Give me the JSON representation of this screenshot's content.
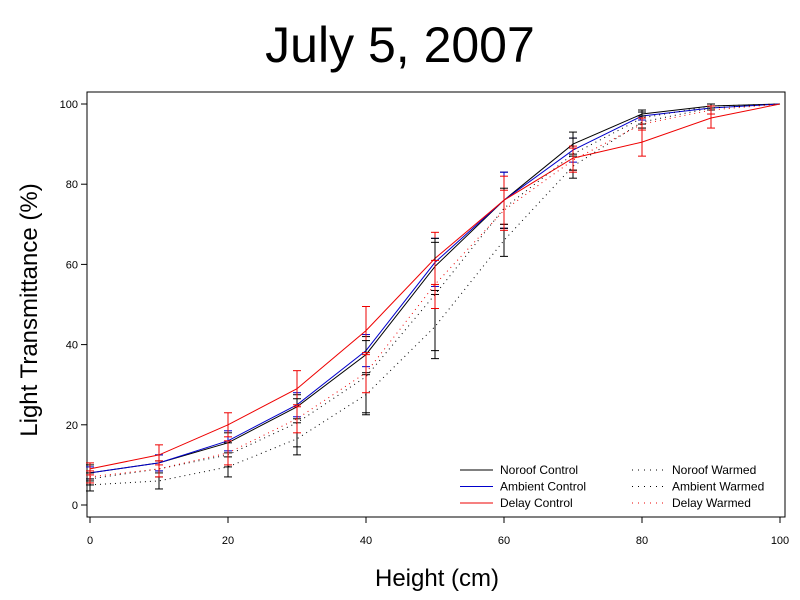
{
  "chart_data": {
    "type": "line",
    "title": "July 5, 2007",
    "xlabel": "Height (cm)",
    "ylabel": "Light Transmittance (%)",
    "xlim": [
      0,
      100
    ],
    "ylim": [
      0,
      100
    ],
    "xticks": [
      0,
      20,
      40,
      60,
      80,
      100
    ],
    "yticks": [
      0,
      20,
      40,
      60,
      80,
      100
    ],
    "x": [
      0,
      10,
      20,
      30,
      40,
      50,
      60,
      70,
      80,
      90,
      100
    ],
    "grid": false,
    "legend_position": "bottom-right",
    "series": [
      {
        "name": "Noroof Control",
        "color": "#000000",
        "style": "solid",
        "values": [
          8,
          10.5,
          15.5,
          24.5,
          37.5,
          59.5,
          76,
          90,
          97.5,
          99.5,
          100
        ],
        "err": [
          2,
          2,
          2.5,
          3,
          4.5,
          6,
          7,
          3,
          1,
          0.5,
          0
        ]
      },
      {
        "name": "Ambient Control",
        "color": "#0000cc",
        "style": "solid",
        "values": [
          8,
          10.5,
          16,
          25,
          38.5,
          60.5,
          76,
          88.5,
          97,
          99,
          100
        ],
        "err": [
          1.5,
          2,
          2.5,
          3,
          4,
          6,
          7,
          3,
          1,
          0.5,
          0
        ]
      },
      {
        "name": "Delay Control",
        "color": "#ee0000",
        "style": "solid",
        "values": [
          9,
          12.5,
          20,
          29,
          43.5,
          61.5,
          76,
          86.5,
          90.5,
          96.5,
          100
        ],
        "err": [
          1.5,
          2.5,
          3,
          4.5,
          6,
          6.5,
          6,
          3,
          3.5,
          2.5,
          0
        ]
      },
      {
        "name": "Noroof Warmed",
        "color": "#000000",
        "style": "dotted",
        "values": [
          6.5,
          9,
          12.5,
          20.5,
          32,
          52.5,
          74,
          87.5,
          96.5,
          99.5,
          100
        ],
        "err": [
          1.5,
          2,
          3,
          6,
          9,
          14,
          5,
          4,
          1.5,
          0.5,
          0
        ]
      },
      {
        "name": "Ambient Warmed",
        "color": "#000000",
        "style": "dotted",
        "values": [
          5,
          6,
          9.5,
          16.5,
          27.5,
          44.5,
          66,
          84.5,
          95.5,
          99,
          100
        ],
        "err": [
          1.5,
          2,
          2.5,
          4,
          5,
          8,
          4,
          3,
          1.5,
          0.5,
          0
        ]
      },
      {
        "name": "Delay Warmed",
        "color": "#ee0000",
        "style": "dotted",
        "values": [
          7,
          9,
          13,
          21.5,
          33,
          55,
          73.5,
          86,
          95,
          98.5,
          100
        ],
        "err": [
          1.5,
          2,
          3,
          3.5,
          5,
          6,
          5,
          3,
          1.5,
          1,
          0
        ]
      }
    ]
  }
}
